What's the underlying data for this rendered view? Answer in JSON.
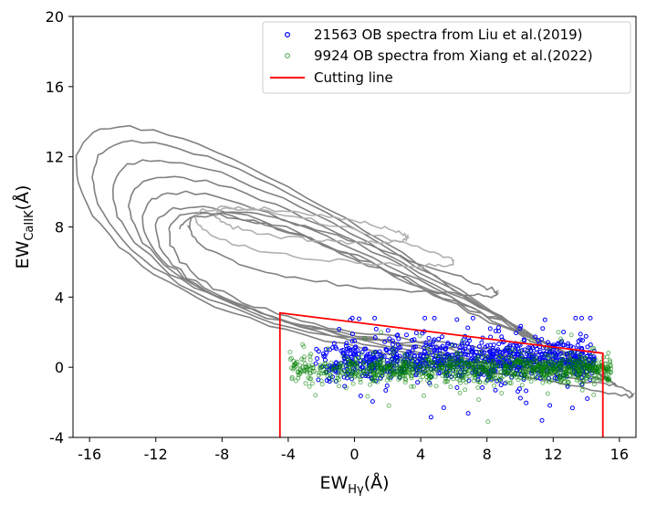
{
  "chart_data": {
    "type": "scatter",
    "title": "",
    "xlabel": {
      "main": "EW",
      "sub": "Hγ",
      "suffix": "(Å)"
    },
    "ylabel": {
      "main": "EW",
      "sub": "CaIIK",
      "suffix": "(Å)"
    },
    "xlim": [
      -17,
      17
    ],
    "ylim": [
      -4,
      20
    ],
    "xticks": [
      -16,
      -12,
      -8,
      -4,
      0,
      4,
      8,
      12,
      16
    ],
    "yticks": [
      -4,
      0,
      4,
      8,
      12,
      16,
      20
    ],
    "grid": false,
    "legend_position": "top-right",
    "series": [
      {
        "name": "21563 OB spectra from Liu et al.(2019)",
        "marker": "open-circle",
        "color": "#0000ff",
        "cluster": {
          "x_range": [
            -2.5,
            14.5
          ],
          "y_center": 0.4,
          "y_spread": 1.3,
          "tail_low": -3.8,
          "tail_high": 2.8
        }
      },
      {
        "name": "9924 OB spectra from Xiang et al.(2022)",
        "marker": "open-circle",
        "color": "#008000",
        "cluster": {
          "x_range": [
            -4,
            15.5
          ],
          "y_center": -0.1,
          "y_spread": 0.8,
          "tail_low": -3.8,
          "tail_high": 2.0
        }
      }
    ],
    "cutting_line": {
      "name": "Cutting line",
      "color": "#ff0000",
      "points": [
        [
          -4.5,
          -4
        ],
        [
          -4.5,
          3.1
        ],
        [
          15,
          0.8
        ],
        [
          15,
          -4
        ]
      ]
    },
    "contours": {
      "color": "#808080",
      "inner_color": "#b0b0b0",
      "description": "density contours of reference stellar sample"
    }
  }
}
